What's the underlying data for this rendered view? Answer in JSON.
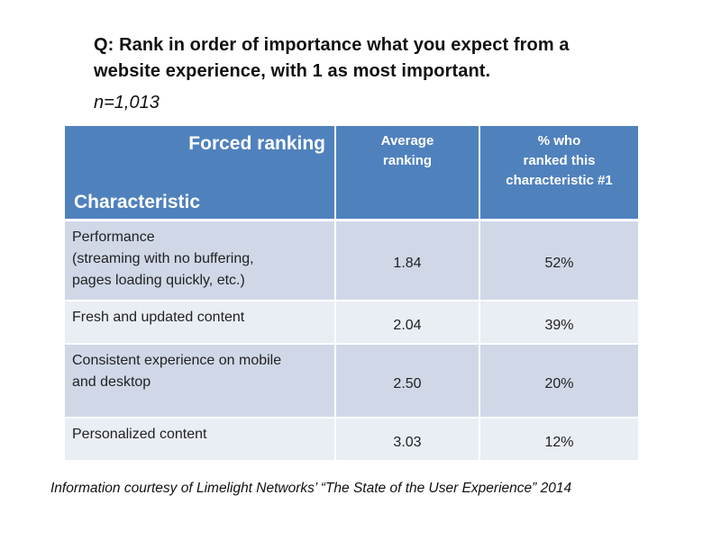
{
  "question": {
    "line1": "Q: Rank in order of importance what you expect from a",
    "line2": "website experience, with 1 as  most important.",
    "sample": "n=1,013"
  },
  "table": {
    "header": {
      "forced_ranking": "Forced ranking",
      "characteristic": "Characteristic",
      "average_ranking": "Average\nranking",
      "pct_ranked_first": "% who\nranked this\ncharacteristic #1"
    },
    "rows": [
      {
        "characteristic": "Performance\n(streaming with no buffering,\npages loading quickly, etc.)",
        "average": "1.84",
        "percent": "52%"
      },
      {
        "characteristic": "Fresh and updated content",
        "average": "2.04",
        "percent": "39%"
      },
      {
        "characteristic": "Consistent experience on mobile\nand desktop",
        "average": "2.50",
        "percent": "20%"
      },
      {
        "characteristic": "Personalized content",
        "average": "3.03",
        "percent": "12%"
      }
    ]
  },
  "footer": "Information courtesy of Limelight Networks’  “The State of the User Experience” 2014",
  "colors": {
    "header_blue": "#4f81bd",
    "row_dark": "#d0d8e8",
    "row_light": "#e9edf4"
  }
}
